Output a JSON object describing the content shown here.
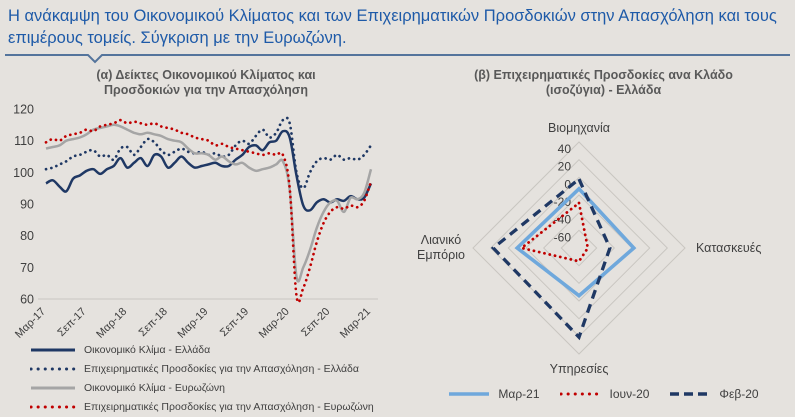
{
  "page": {
    "title": "Η ανάκαμψη του Οικονομικού Κλίματος και των Επιχειρηματικών Προσδοκιών στην Απασχόληση και τους επιμέρους τομείς. Σύγκριση με την Ευρωζώνη.",
    "colors": {
      "background": "#e5e2de",
      "title_blue": "#1e5aa8",
      "divider_line": "#54749c",
      "chart_title_gray": "#595959",
      "axis_text": "#3f3f3f",
      "gridline_gray": "#c9c6c1",
      "navy": "#1f3864",
      "red": "#c00000",
      "gray_series": "#a5a5a5",
      "light_blue": "#6fa8dc"
    }
  },
  "chart_data": [
    {
      "type": "line",
      "title": "(α) Δείκτες Οικονομικού Κλίματος και Προσδοκιών για την Απασχόληση",
      "xlabel": "",
      "ylabel": "",
      "ylim": [
        60,
        120
      ],
      "yticks": [
        60,
        70,
        80,
        90,
        100,
        110,
        120
      ],
      "grid": false,
      "legend_position": "bottom-left",
      "x_tick_labels": [
        "Μαρ-17",
        "Σεπ-17",
        "Μαρ-18",
        "Σεπ-18",
        "Μαρ-19",
        "Σεπ-19",
        "Μαρ-20",
        "Σεπ-20",
        "Μαρ-21"
      ],
      "x_note": "monthly values Mar-2017 to Mar-2021, ticks every 6 months",
      "series": [
        {
          "name": "Οικονομικό Κλίμα - Ελλάδα",
          "style": "solid",
          "color": "#1f3864",
          "values": [
            96.5,
            97.5,
            95.5,
            94,
            98,
            99,
            100.5,
            101,
            99.5,
            101,
            102,
            104.5,
            101.5,
            103,
            104.5,
            102,
            105.5,
            105,
            101.5,
            103,
            105,
            103,
            101.5,
            102,
            102.5,
            103,
            102,
            102,
            104,
            105.5,
            108,
            108.5,
            107,
            109.5,
            110,
            113,
            111,
            99,
            89.5,
            88,
            90.5,
            91.5,
            90.5,
            91.5,
            91,
            92.5,
            91.5,
            92,
            96.5
          ]
        },
        {
          "name": "Επιχειρηματικές Προσδοκίες για την Απασχόληση - Ελλάδα",
          "style": "dotted",
          "color": "#1f3864",
          "values": [
            101,
            101.5,
            102.5,
            103.5,
            105,
            105.5,
            106.5,
            107,
            105,
            105.5,
            104,
            107.5,
            108,
            105.5,
            108,
            110.5,
            109.5,
            107,
            105.5,
            106.5,
            107.5,
            106.5,
            106,
            106.5,
            105.5,
            106,
            105,
            105.5,
            108.5,
            110,
            109,
            111.5,
            113.5,
            111,
            112.5,
            116.5,
            115.5,
            100,
            95,
            100,
            103.5,
            104.5,
            104,
            105.5,
            104,
            104.5,
            104,
            105.5,
            108.5
          ]
        },
        {
          "name": "Οικονομικό Κλίμα - Ευρωζώνη",
          "style": "solid",
          "color": "#a5a5a5",
          "values": [
            107.5,
            108,
            108.5,
            110,
            110.5,
            111,
            112,
            113.5,
            114,
            114.5,
            115,
            114.5,
            113.5,
            112.5,
            112,
            112.5,
            112,
            111.5,
            110.5,
            110,
            109.5,
            107.5,
            106,
            106,
            105.5,
            104,
            105,
            103.5,
            102.5,
            103,
            101.5,
            100.5,
            101,
            101.5,
            102.5,
            103.5,
            94.5,
            67,
            70,
            75.5,
            82.5,
            87.5,
            90.5,
            91,
            87.5,
            92,
            91.5,
            93.5,
            101
          ]
        },
        {
          "name": "Επιχειρηματικές Προσδοκίες για την Απασχόληση - Ευρωζώνη",
          "style": "dotted",
          "color": "#c00000",
          "values": [
            109.5,
            110.5,
            110,
            111.5,
            112,
            112.5,
            113.5,
            113,
            114.5,
            115,
            115.5,
            116.5,
            115.5,
            116,
            115.5,
            115,
            115.5,
            114.5,
            114,
            113.5,
            112.5,
            112,
            111,
            110.5,
            110,
            108.5,
            109,
            108,
            107.5,
            107,
            106.5,
            106,
            105.5,
            106,
            105.5,
            105.5,
            95,
            61,
            63.5,
            70,
            78,
            84,
            87.5,
            89,
            88.5,
            89.5,
            89,
            91,
            97
          ]
        }
      ]
    },
    {
      "type": "radar",
      "title": "(β) Επιχειρηματικές Προσδοκίες ανα Κλάδο (ισοζύγια) - Ελλάδα",
      "categories": [
        "Βιομηχανία",
        "Κατασκευές",
        "Υπηρεσίες",
        "Λιανικό Εμπόριο"
      ],
      "rlim": [
        -80,
        40
      ],
      "rticks": [
        40,
        20,
        0,
        -20,
        -40,
        -60
      ],
      "legend_position": "bottom-center",
      "series": [
        {
          "name": "Μαρ-21",
          "style": "solid",
          "color": "#6fa8dc",
          "values": [
            -13,
            -18,
            -26,
            -10
          ]
        },
        {
          "name": "Ιουν-20",
          "style": "dotted",
          "color": "#c00000",
          "values": [
            -29,
            -70,
            -65,
            -15
          ]
        },
        {
          "name": "Φεβ-20",
          "style": "dashed",
          "color": "#1f3864",
          "values": [
            -2,
            -45,
            21,
            17
          ]
        }
      ]
    }
  ]
}
